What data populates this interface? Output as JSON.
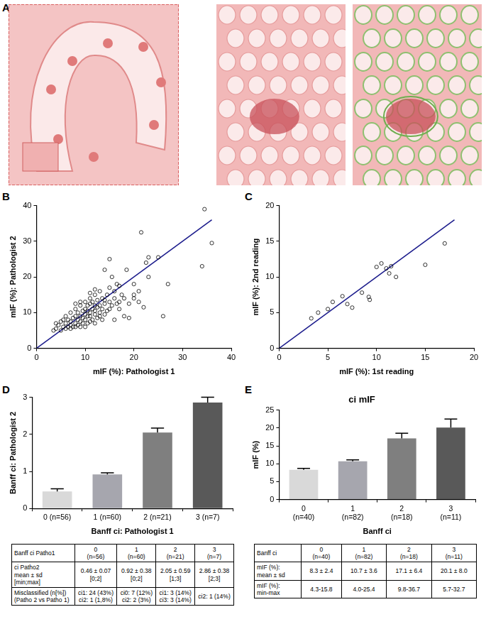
{
  "panel_a": {
    "label": "A"
  },
  "chart_data": [
    {
      "panel": "B",
      "type": "scatter",
      "x_label": "mIF (%): Pathologist 1",
      "y_label": "mIF (%): Pathologist 2",
      "xlim": [
        0,
        40
      ],
      "ylim": [
        0,
        40
      ],
      "xticks": [
        0,
        10,
        20,
        30,
        40
      ],
      "yticks": [
        0,
        10,
        20,
        30,
        40
      ],
      "grid": false,
      "series": [
        {
          "type": "scatter",
          "marker": "open_circle",
          "color": "#000000",
          "x": [
            4,
            4.5,
            5,
            5,
            5.5,
            5.5,
            6,
            6,
            6,
            6.5,
            6.5,
            7,
            7,
            7,
            7,
            7.5,
            7.5,
            8,
            8,
            8,
            8,
            8.5,
            8.5,
            8.5,
            9,
            9,
            9,
            9,
            9.5,
            9.5,
            9.5,
            10,
            10,
            10,
            10,
            10,
            10.5,
            10.5,
            10.5,
            10.5,
            11,
            11,
            11,
            11,
            11,
            11.5,
            11.5,
            11.5,
            12,
            12,
            12,
            12,
            12,
            12.5,
            12.5,
            12.5,
            13,
            13,
            13,
            13,
            13.5,
            13.5,
            14,
            14,
            14,
            14,
            14.5,
            14.5,
            15,
            15,
            15,
            15,
            15.5,
            15.5,
            16,
            16,
            16,
            16.5,
            16.5,
            17,
            17,
            17.5,
            18,
            18,
            19,
            19,
            20,
            20,
            21,
            21,
            21.5,
            22,
            22.5,
            23,
            23,
            25,
            26,
            27,
            34,
            34.5,
            36,
            3.5,
            4,
            12,
            9,
            17,
            18.5,
            13.5,
            11,
            8,
            20
          ],
          "values": [
            5.5,
            6.5,
            5,
            7.5,
            6,
            8,
            5.5,
            7,
            9,
            6,
            8,
            5.5,
            6.5,
            7.5,
            10,
            6,
            8.5,
            6,
            7,
            9,
            11,
            6.5,
            8,
            10,
            6,
            7.5,
            9,
            12,
            7,
            8.5,
            10.5,
            6,
            8,
            9.5,
            11,
            13,
            7,
            9,
            10.5,
            12,
            7.5,
            9,
            10,
            12.5,
            14,
            8,
            11,
            13,
            7,
            9.5,
            10.5,
            12,
            15,
            8.5,
            11.5,
            13.5,
            9,
            10,
            12,
            16,
            11,
            14,
            9.5,
            12.5,
            13.5,
            22,
            10.5,
            15,
            11,
            13,
            17,
            25,
            12,
            20,
            8,
            14,
            16,
            12.5,
            18,
            13,
            11,
            15,
            14,
            9,
            12.5,
            8.5,
            18,
            14,
            13,
            16,
            32.5,
            11.5,
            24,
            25.5,
            20,
            25.5,
            9,
            18,
            23,
            39,
            29.5,
            5,
            7,
            16.5,
            13,
            17.5,
            22,
            8,
            15.5,
            12.5,
            15
          ]
        },
        {
          "type": "line",
          "line_style": "solid",
          "color": "#1c1c8c",
          "x": [
            0,
            36
          ],
          "values": [
            0,
            36
          ]
        }
      ]
    },
    {
      "panel": "C",
      "type": "scatter",
      "x_label": "mIF (%): 1st reading",
      "y_label": "mIF (%): 2nd reading",
      "xlim": [
        0,
        20
      ],
      "ylim": [
        0,
        20
      ],
      "xticks": [
        0,
        5,
        10,
        15,
        20
      ],
      "yticks": [
        0,
        5,
        10,
        15,
        20
      ],
      "grid": false,
      "series": [
        {
          "type": "scatter",
          "marker": "open_circle",
          "color": "#000000",
          "x": [
            3.3,
            4,
            5,
            5.5,
            6.5,
            7,
            7.5,
            8.5,
            9.2,
            9.3,
            10,
            10.5,
            11,
            11.3,
            11.5,
            12,
            15,
            17
          ],
          "values": [
            4.2,
            5,
            5.5,
            6.5,
            7.3,
            6.2,
            5.7,
            7.8,
            7.2,
            6.8,
            11.4,
            11.9,
            11.2,
            10.5,
            11.5,
            10,
            11.7,
            14.7
          ]
        },
        {
          "type": "line",
          "line_style": "solid",
          "color": "#1c1c8c",
          "x": [
            0,
            18
          ],
          "values": [
            0,
            18
          ]
        }
      ]
    },
    {
      "panel": "D",
      "type": "bar",
      "x_label": "Banff ci: Pathologist 1",
      "y_label": "Banff ci: Pathologist 2",
      "categories": [
        "0 (n=56)",
        "1 (n=60)",
        "2 (n=21)",
        "3 (n=7)"
      ],
      "values": [
        0.46,
        0.92,
        2.05,
        2.86
      ],
      "errors": [
        0.07,
        0.04,
        0.12,
        0.14
      ],
      "colors": [
        "#d9d9d9",
        "#a6a6ae",
        "#7f7f7f",
        "#595959"
      ],
      "ylim": [
        0,
        3
      ],
      "yticks": [
        0,
        1,
        2,
        3
      ],
      "grid": false,
      "table": {
        "rows": [
          [
            "Banff ci Patho1",
            "0\n(n=56)",
            "1\n(n=60)",
            "2\n(n=21)",
            "3\n(n=7)"
          ],
          [
            "ci Patho2\nmean ± sd\n[min;max]",
            "0.46 ± 0.07\n[0;2]",
            "0.92 ± 0.38\n[0;2]",
            "2.05 ± 0.59\n[1;3]",
            "2.86 ± 0.38\n[2;3]"
          ],
          [
            "Misclassified (n[%])\n(Patho 2 vs Patho 1)",
            "ci1: 24 (43%)\nci2: 1 (1,8%)",
            "ci0: 7 (12%)\nci2: 2 (3%)",
            "ci1: 3 (14%)\nci3: 3 (14%)",
            "ci2: 1 (14%)"
          ]
        ]
      }
    },
    {
      "panel": "E",
      "type": "bar",
      "title": "ci mIF",
      "x_label": "Banff ci",
      "y_label": "mIF (%)",
      "categories": [
        "0\n(n=40)",
        "1\n(n=82)",
        "2\n(n=18)",
        "3\n(n=11)"
      ],
      "values": [
        8.3,
        10.7,
        17.1,
        20.1
      ],
      "errors": [
        0.4,
        0.4,
        1.4,
        2.4
      ],
      "colors": [
        "#d9d9d9",
        "#a6a6ae",
        "#7f7f7f",
        "#595959"
      ],
      "ylim": [
        0,
        25
      ],
      "yticks": [
        0,
        5,
        10,
        15,
        20,
        25
      ],
      "grid": false,
      "table": {
        "rows": [
          [
            "Banff ci",
            "0\n(n=40)",
            "1\n(n=82)",
            "2\n(n=18)",
            "3\n(n=11)"
          ],
          [
            "mIF (%):\nmean ± sd",
            "8.3 ± 2.4",
            "10.7 ± 3.6",
            "17.1 ± 6.4",
            "20.1 ± 8.0"
          ],
          [
            "mIF (%):\nmin-max",
            "4.3-15.8",
            "4.0-25.4",
            "9.8-36.7",
            "5.7-32.7"
          ]
        ]
      }
    }
  ]
}
